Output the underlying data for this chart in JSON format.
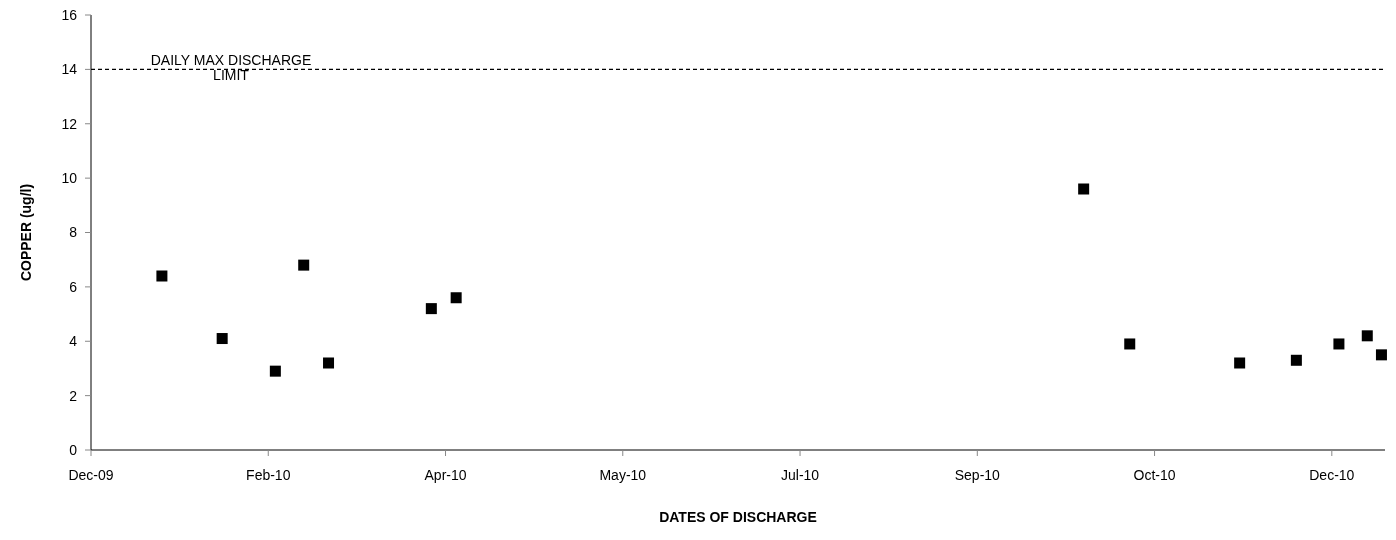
{
  "chart_data": {
    "type": "scatter",
    "xlabel": "DATES OF DISCHARGE",
    "ylabel": "COPPER (ug/l)",
    "x": [
      "2010-01-20",
      "2010-02-06",
      "2010-02-21",
      "2010-03-01",
      "2010-03-08",
      "2010-04-06",
      "2010-04-13",
      "2010-10-07",
      "2010-10-20",
      "2010-11-20",
      "2010-12-06",
      "2010-12-18",
      "2010-12-26",
      "2010-12-30"
    ],
    "series": [
      {
        "color": "#000000",
        "values": [
          6.4,
          4.1,
          2.9,
          6.8,
          3.2,
          5.2,
          5.6,
          9.6,
          3.9,
          3.2,
          3.3,
          3.9,
          4.2,
          3.5
        ]
      }
    ],
    "marker": "square",
    "xlim": [
      "2009-12-31",
      "2010-12-31"
    ],
    "xticks": [
      {
        "value": "2009-12-31",
        "label": "Dec-09"
      },
      {
        "value": "2010-02-19",
        "label": "Feb-10"
      },
      {
        "value": "2010-04-10",
        "label": "Apr-10"
      },
      {
        "value": "2010-05-30",
        "label": "May-10"
      },
      {
        "value": "2010-07-19",
        "label": "Jul-10"
      },
      {
        "value": "2010-09-07",
        "label": "Sep-10"
      },
      {
        "value": "2010-10-27",
        "label": "Oct-10"
      },
      {
        "value": "2010-12-16",
        "label": "Dec-10"
      }
    ],
    "ylim": [
      0,
      16
    ],
    "yticks": [
      0,
      2,
      4,
      6,
      8,
      10,
      12,
      14,
      16
    ],
    "ref_lines": [
      {
        "axis": "y",
        "value": 14,
        "label": "DAILY MAX DISCHARGE\nLIMIT",
        "color": "#000000",
        "line_style": "dashed"
      }
    ],
    "grid": false
  }
}
